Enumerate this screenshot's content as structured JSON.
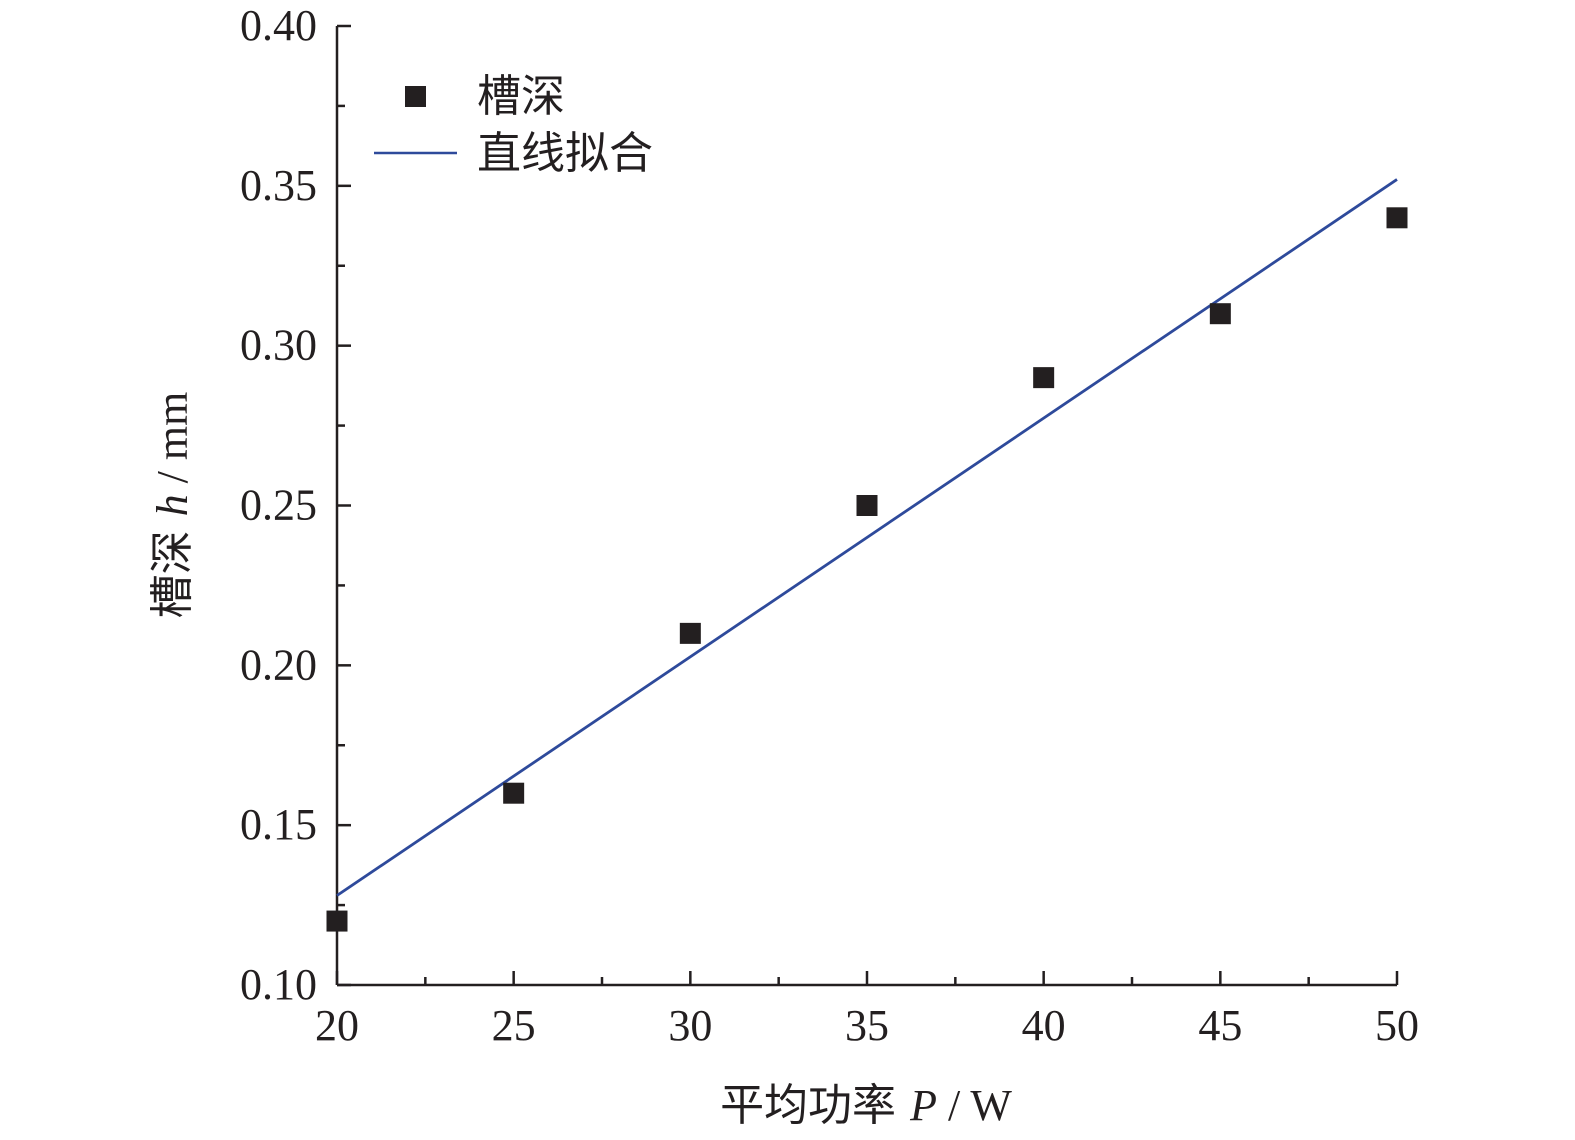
{
  "chart_data": {
    "type": "scatter",
    "xlabel": {
      "main": "平均功率 ",
      "var": "P",
      "unit": " / W"
    },
    "ylabel": {
      "main": "槽深 ",
      "var": "h",
      "unit": " / mm"
    },
    "xlim": [
      20,
      50
    ],
    "ylim": [
      0.1,
      0.4
    ],
    "xticks": [
      "20",
      "25",
      "30",
      "35",
      "40",
      "45",
      "50"
    ],
    "yticks": [
      "0.10",
      "0.15",
      "0.20",
      "0.25",
      "0.30",
      "0.35",
      "0.40"
    ],
    "grid": false,
    "legend_position": "top-left",
    "series": [
      {
        "name": "槽深",
        "kind": "scatter",
        "marker": "square",
        "color": "#231f20",
        "x": [
          20,
          25,
          30,
          35,
          40,
          45,
          50
        ],
        "y": [
          0.12,
          0.16,
          0.21,
          0.25,
          0.29,
          0.31,
          0.34
        ]
      },
      {
        "name": "直线拟合",
        "kind": "line",
        "color": "#2e4a9b",
        "x": [
          20,
          50
        ],
        "y": [
          0.128,
          0.352
        ]
      }
    ]
  }
}
